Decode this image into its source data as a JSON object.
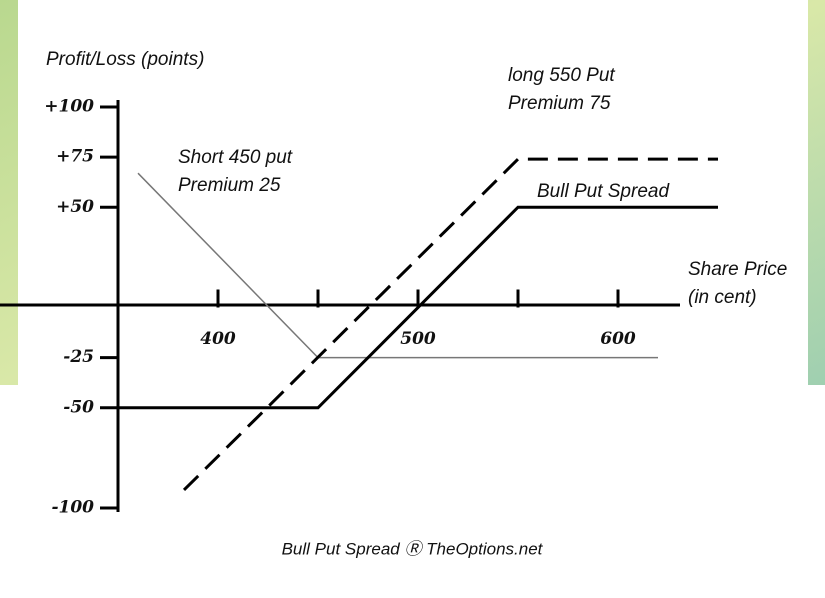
{
  "chart_data": {
    "type": "line",
    "y_label": "Profit/Loss (points)",
    "x_label": [
      "Share Price",
      "(in cent)"
    ],
    "caption": "Bull Put Spread Ⓡ TheOptions.net",
    "xlim": [
      291,
      631
    ],
    "ylim": [
      -100,
      100
    ],
    "xticks": [
      400,
      500,
      600
    ],
    "xminor_ticks": [
      450,
      550
    ],
    "yticks": [
      {
        "value": 100,
        "label": "+100"
      },
      {
        "value": 75,
        "label": "+75"
      },
      {
        "value": 50,
        "label": "+50"
      },
      -25,
      -50,
      -100
    ],
    "series": [
      {
        "name": "Short 450 put",
        "note": "Premium 25",
        "color": "#777777",
        "style": "thin",
        "x": [
          360,
          450,
          620
        ],
        "values": [
          67,
          -25,
          -25
        ]
      },
      {
        "name": "long 550 Put",
        "note": "Premium 75",
        "color": "#000000",
        "style": "dashed",
        "x": [
          383,
          550,
          650
        ],
        "values": [
          -91,
          74,
          74
        ]
      },
      {
        "name": "Bull Put Spread",
        "color": "#000000",
        "style": "solid",
        "x": [
          350,
          450,
          550,
          650
        ],
        "values": [
          -50,
          -50,
          50,
          50
        ]
      }
    ]
  }
}
